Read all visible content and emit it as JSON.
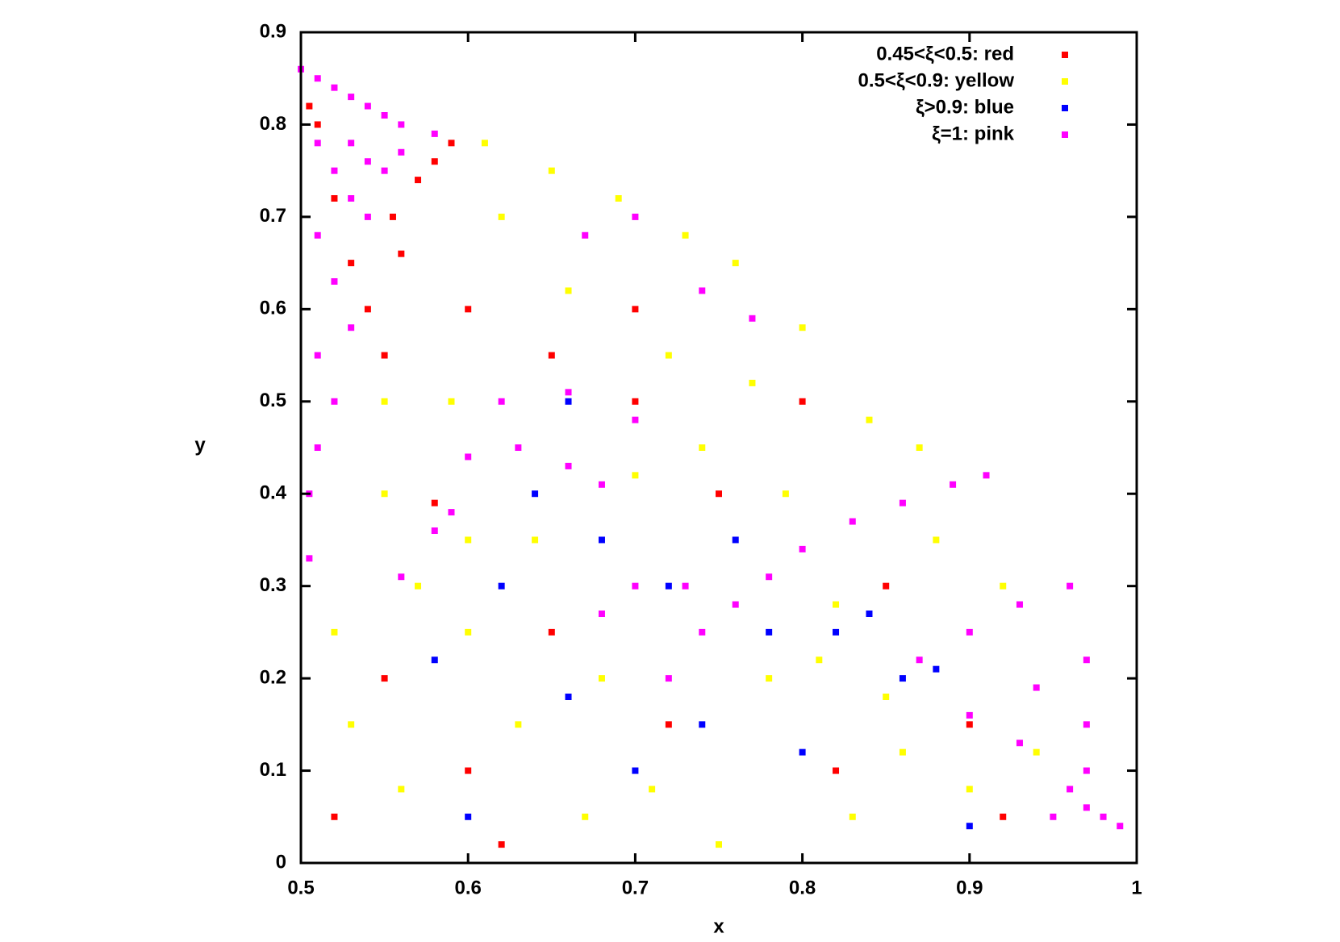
{
  "chart_data": {
    "type": "scatter",
    "x_label": "x",
    "y_label": "y",
    "xlim": [
      0.5,
      1
    ],
    "xticks": [
      0.5,
      0.6,
      0.7,
      0.8,
      0.9,
      1
    ],
    "ylim": [
      0,
      0.9
    ],
    "yticks": [
      0,
      0.1,
      0.2,
      0.3,
      0.4,
      0.5,
      0.6,
      0.7,
      0.8,
      0.9
    ],
    "legend": "upper right",
    "series": [
      {
        "name": "0.45<ξ<0.5: red",
        "color": "#ff0000",
        "x": [
          0.51,
          0.52,
          0.53,
          0.54,
          0.55,
          0.555,
          0.57,
          0.58,
          0.59,
          0.56,
          0.505,
          0.6,
          0.65,
          0.7,
          0.55,
          0.6,
          0.65,
          0.75,
          0.8,
          0.85,
          0.9,
          0.52,
          0.62,
          0.72,
          0.82,
          0.92,
          0.7,
          0.58
        ],
        "y": [
          0.8,
          0.72,
          0.65,
          0.6,
          0.55,
          0.7,
          0.74,
          0.76,
          0.78,
          0.66,
          0.82,
          0.6,
          0.55,
          0.5,
          0.2,
          0.1,
          0.25,
          0.4,
          0.5,
          0.3,
          0.15,
          0.05,
          0.02,
          0.15,
          0.1,
          0.05,
          0.6,
          0.39
        ]
      },
      {
        "name": "0.5<ξ<0.9: yellow",
        "color": "#ffff00",
        "x": [
          0.55,
          0.57,
          0.6,
          0.62,
          0.64,
          0.66,
          0.68,
          0.7,
          0.72,
          0.74,
          0.76,
          0.78,
          0.8,
          0.82,
          0.84,
          0.86,
          0.88,
          0.9,
          0.92,
          0.94,
          0.53,
          0.56,
          0.59,
          0.63,
          0.67,
          0.71,
          0.75,
          0.79,
          0.83,
          0.87,
          0.61,
          0.65,
          0.69,
          0.73,
          0.77,
          0.81,
          0.85,
          0.6,
          0.55,
          0.52
        ],
        "y": [
          0.4,
          0.3,
          0.25,
          0.7,
          0.35,
          0.62,
          0.2,
          0.42,
          0.55,
          0.45,
          0.65,
          0.2,
          0.58,
          0.28,
          0.48,
          0.12,
          0.35,
          0.08,
          0.3,
          0.12,
          0.15,
          0.08,
          0.5,
          0.15,
          0.05,
          0.08,
          0.02,
          0.4,
          0.05,
          0.45,
          0.78,
          0.75,
          0.72,
          0.68,
          0.52,
          0.22,
          0.18,
          0.35,
          0.5,
          0.25
        ]
      },
      {
        "name": "ξ>0.9: blue",
        "color": "#0000ff",
        "x": [
          0.58,
          0.62,
          0.66,
          0.7,
          0.74,
          0.78,
          0.82,
          0.84,
          0.86,
          0.88,
          0.64,
          0.68,
          0.76,
          0.8,
          0.9,
          0.6,
          0.72,
          0.66
        ],
        "y": [
          0.22,
          0.3,
          0.18,
          0.1,
          0.15,
          0.25,
          0.25,
          0.27,
          0.2,
          0.21,
          0.4,
          0.35,
          0.35,
          0.12,
          0.04,
          0.05,
          0.3,
          0.5
        ]
      },
      {
        "name": "ξ=1: pink",
        "color": "#ff00ff",
        "x": [
          0.5,
          0.51,
          0.52,
          0.53,
          0.54,
          0.55,
          0.56,
          0.58,
          0.51,
          0.52,
          0.53,
          0.54,
          0.55,
          0.51,
          0.52,
          0.53,
          0.51,
          0.52,
          0.51,
          0.505,
          0.505,
          0.53,
          0.54,
          0.56,
          0.72,
          0.74,
          0.76,
          0.78,
          0.8,
          0.83,
          0.86,
          0.89,
          0.91,
          0.87,
          0.9,
          0.93,
          0.96,
          0.9,
          0.94,
          0.97,
          0.93,
          0.97,
          0.96,
          0.97,
          0.98,
          0.95,
          0.97,
          0.99,
          0.6,
          0.63,
          0.66,
          0.68,
          0.59,
          0.58,
          0.62,
          0.66,
          0.7,
          0.7,
          0.67,
          0.74,
          0.77,
          0.7,
          0.73,
          0.68,
          0.56
        ],
        "y": [
          0.86,
          0.85,
          0.84,
          0.83,
          0.82,
          0.81,
          0.8,
          0.79,
          0.78,
          0.75,
          0.72,
          0.7,
          0.75,
          0.68,
          0.63,
          0.58,
          0.55,
          0.5,
          0.45,
          0.4,
          0.33,
          0.78,
          0.76,
          0.77,
          0.2,
          0.25,
          0.28,
          0.31,
          0.34,
          0.37,
          0.39,
          0.41,
          0.42,
          0.22,
          0.25,
          0.28,
          0.3,
          0.16,
          0.19,
          0.22,
          0.13,
          0.15,
          0.08,
          0.06,
          0.05,
          0.05,
          0.1,
          0.04,
          0.44,
          0.45,
          0.43,
          0.41,
          0.38,
          0.36,
          0.5,
          0.51,
          0.48,
          0.7,
          0.68,
          0.62,
          0.59,
          0.3,
          0.3,
          0.27,
          0.31
        ]
      }
    ]
  }
}
